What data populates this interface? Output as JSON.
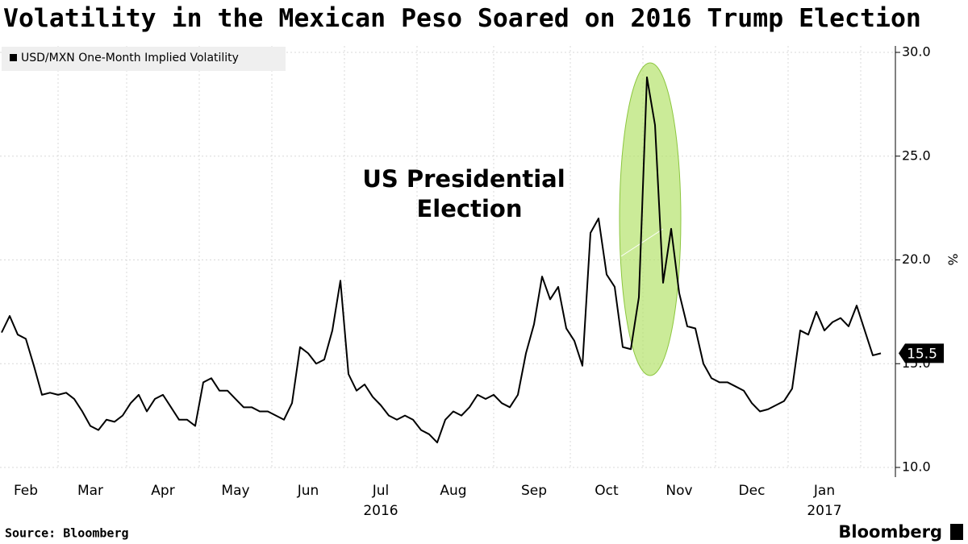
{
  "chart_data": {
    "type": "line",
    "title": "Volatility in the Mexican Peso Soared on 2016 Trump Election",
    "y_axis_label": "%",
    "source": "Source: Bloomberg",
    "brand": "Bloomberg",
    "annotation": [
      "US Presidential",
      "Election"
    ],
    "last_value_label": "15.5",
    "grid": true,
    "legend_position": "top-left",
    "categories": [
      null,
      null,
      null,
      "Feb",
      null,
      null,
      null,
      null,
      null,
      null,
      null,
      "Mar",
      null,
      null,
      null,
      null,
      null,
      null,
      null,
      null,
      "Apr",
      null,
      null,
      null,
      null,
      null,
      null,
      null,
      null,
      "May",
      null,
      null,
      null,
      null,
      null,
      null,
      null,
      null,
      "Jun",
      null,
      null,
      null,
      null,
      null,
      null,
      null,
      null,
      "Jul",
      null,
      null,
      null,
      null,
      null,
      null,
      null,
      null,
      "Aug",
      null,
      null,
      null,
      null,
      null,
      null,
      null,
      null,
      null,
      "Sep",
      null,
      null,
      null,
      null,
      null,
      null,
      null,
      null,
      "Oct",
      null,
      null,
      null,
      null,
      null,
      null,
      null,
      null,
      "Nov",
      null,
      null,
      null,
      null,
      null,
      null,
      null,
      null,
      "Dec",
      null,
      null,
      null,
      null,
      null,
      null,
      null,
      null,
      "Jan",
      null,
      null,
      null,
      null,
      null,
      null,
      null
    ],
    "years": [
      {
        "label": "2016",
        "at": "Jul"
      },
      {
        "label": "2017",
        "at": "Jan"
      }
    ],
    "series": [
      {
        "name": "USD/MXN One-Month Implied Volatility",
        "color": "#000000",
        "values": [
          16.5,
          17.3,
          16.4,
          16.2,
          14.9,
          13.5,
          13.6,
          13.5,
          13.6,
          13.3,
          12.7,
          12.0,
          11.8,
          12.3,
          12.2,
          12.5,
          13.1,
          13.5,
          12.7,
          13.3,
          13.5,
          12.9,
          12.3,
          12.3,
          12.0,
          14.1,
          14.3,
          13.7,
          13.7,
          13.3,
          12.9,
          12.9,
          12.7,
          12.7,
          12.5,
          12.3,
          13.1,
          15.8,
          15.5,
          15.0,
          15.2,
          16.6,
          19.0,
          14.5,
          13.7,
          14.0,
          13.4,
          13.0,
          12.5,
          12.3,
          12.5,
          12.3,
          11.8,
          11.6,
          11.2,
          12.3,
          12.7,
          12.5,
          12.9,
          13.5,
          13.3,
          13.5,
          13.1,
          12.9,
          13.5,
          15.5,
          16.9,
          19.2,
          18.1,
          18.7,
          16.7,
          16.1,
          14.9,
          21.3,
          22.0,
          19.3,
          18.7,
          15.8,
          15.7,
          18.2,
          28.8,
          26.5,
          18.9,
          21.5,
          18.4,
          16.8,
          16.7,
          15.0,
          14.3,
          14.1,
          14.1,
          13.9,
          13.7,
          13.1,
          12.7,
          12.8,
          13.0,
          13.2,
          13.8,
          16.6,
          16.4,
          17.5,
          16.6,
          17.0,
          17.2,
          16.8,
          17.8,
          16.6,
          15.4,
          15.5
        ]
      }
    ],
    "ylim": [
      10,
      30
    ],
    "yticks": [
      {
        "value": 10,
        "label": "10.0"
      },
      {
        "value": 15,
        "label": "15.0"
      },
      {
        "value": 20,
        "label": "20.0"
      },
      {
        "value": 25,
        "label": "25.0"
      },
      {
        "value": 30,
        "label": "30.0"
      }
    ]
  }
}
